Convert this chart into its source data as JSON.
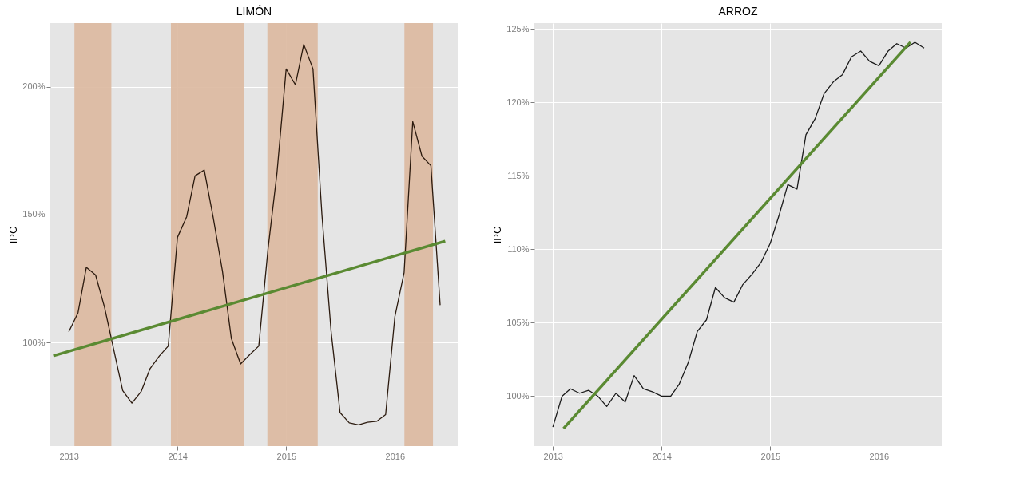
{
  "chart_data": [
    {
      "type": "line",
      "title": "LIMÓN",
      "ylabel": "IPC",
      "x": [
        "2013-01",
        "2013-02",
        "2013-03",
        "2013-04",
        "2013-05",
        "2013-06",
        "2013-07",
        "2013-08",
        "2013-09",
        "2013-10",
        "2013-11",
        "2013-12",
        "2014-01",
        "2014-02",
        "2014-03",
        "2014-04",
        "2014-05",
        "2014-06",
        "2014-07",
        "2014-08",
        "2014-09",
        "2014-10",
        "2014-11",
        "2014-12",
        "2015-01",
        "2015-02",
        "2015-03",
        "2015-04",
        "2015-05",
        "2015-06",
        "2015-07",
        "2015-08",
        "2015-09",
        "2015-10",
        "2015-11",
        "2015-12",
        "2016-01",
        "2016-02",
        "2016-03",
        "2016-04",
        "2016-05",
        "2016-06"
      ],
      "series": [
        {
          "color": "#2b1a0e",
          "values": [
            104.2,
            111.6,
            129.4,
            126.4,
            113.8,
            97.2,
            81.2,
            76.3,
            80.8,
            89.8,
            94.7,
            98.6,
            141.1,
            149.2,
            165.1,
            167.4,
            148.8,
            127.9,
            101.5,
            91.6,
            95.3,
            98.6,
            136.5,
            166.1,
            206.9,
            200.7,
            216.5,
            206.9,
            150,
            104.2,
            72.6,
            68.6,
            67.8,
            68.8,
            69.2,
            71.8,
            110.1,
            127.3,
            186.3,
            172.8,
            169.1,
            114.6
          ]
        },
        {
          "type": "line",
          "color": "#5a8a32",
          "x": [
            "2012-11-10",
            "2016-06-18"
          ],
          "values": [
            94.8,
            139.6
          ]
        }
      ],
      "bands": [
        {
          "axis": "x",
          "from": "2013-01-20",
          "to": "2013-05-24",
          "color": "#dbb89e"
        },
        {
          "axis": "x",
          "from": "2013-12-10",
          "to": "2014-08-12",
          "color": "#dbb89e"
        },
        {
          "axis": "x",
          "from": "2014-10-30",
          "to": "2015-04-17",
          "color": "#dbb89e"
        },
        {
          "axis": "x",
          "from": "2016-02-02",
          "to": "2016-05-08",
          "color": "#dbb89e"
        }
      ],
      "xlim": [
        "2012-10-31",
        "2016-07-30"
      ],
      "xticks": [
        "2013",
        "2014",
        "2015",
        "2016"
      ],
      "ylim": [
        59.5,
        224.8
      ],
      "yticks": [
        {
          "value": 100,
          "label": "100%"
        },
        {
          "value": 150,
          "label": "150%"
        },
        {
          "value": 200,
          "label": "200%"
        }
      ],
      "grid": true
    },
    {
      "type": "line",
      "title": "ARROZ",
      "ylabel": "IPC",
      "x": [
        "2013-01",
        "2013-02",
        "2013-03",
        "2013-04",
        "2013-05",
        "2013-06",
        "2013-07",
        "2013-08",
        "2013-09",
        "2013-10",
        "2013-11",
        "2013-12",
        "2014-01",
        "2014-02",
        "2014-03",
        "2014-04",
        "2014-05",
        "2014-06",
        "2014-07",
        "2014-08",
        "2014-09",
        "2014-10",
        "2014-11",
        "2014-12",
        "2015-01",
        "2015-02",
        "2015-03",
        "2015-04",
        "2015-05",
        "2015-06",
        "2015-07",
        "2015-08",
        "2015-09",
        "2015-10",
        "2015-11",
        "2015-12",
        "2016-01",
        "2016-02",
        "2016-03",
        "2016-04",
        "2016-05",
        "2016-06"
      ],
      "series": [
        {
          "color": "#1a1a1a",
          "values": [
            97.9,
            100.0,
            100.5,
            100.2,
            100.4,
            100.0,
            99.3,
            100.2,
            99.6,
            101.4,
            100.5,
            100.3,
            100.0,
            100.0,
            100.8,
            102.3,
            104.4,
            105.2,
            107.4,
            106.7,
            106.4,
            107.6,
            108.3,
            109.1,
            110.4,
            112.4,
            114.4,
            114.1,
            117.8,
            118.9,
            120.6,
            121.4,
            121.9,
            123.1,
            123.5,
            122.8,
            122.5,
            123.5,
            124.0,
            123.7,
            124.1,
            123.7
          ]
        },
        {
          "type": "line",
          "color": "#5a8a32",
          "x": [
            "2013-02-06",
            "2016-04-16"
          ],
          "values": [
            97.8,
            124.1
          ]
        }
      ],
      "xlim": [
        "2012-10-31",
        "2016-07-30"
      ],
      "xticks": [
        "2013",
        "2014",
        "2015",
        "2016"
      ],
      "ylim": [
        96.6,
        125.4
      ],
      "yticks": [
        {
          "value": 100,
          "label": "100%"
        },
        {
          "value": 105,
          "label": "105%"
        },
        {
          "value": 110,
          "label": "110%"
        },
        {
          "value": 115,
          "label": "115%"
        },
        {
          "value": 120,
          "label": "120%"
        },
        {
          "value": 125,
          "label": "125%"
        }
      ],
      "grid": true
    }
  ]
}
